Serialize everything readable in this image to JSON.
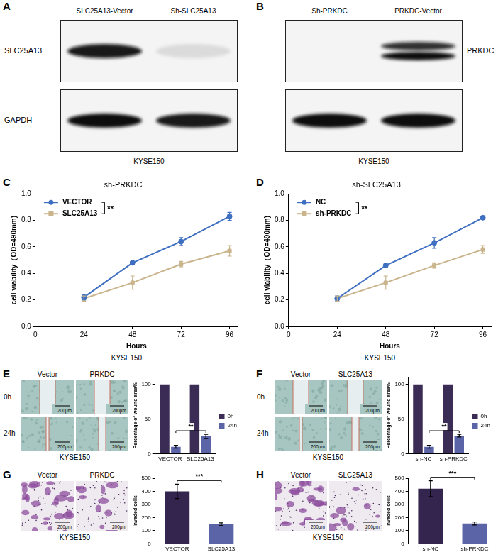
{
  "chart_data": [
    {
      "panel": "C",
      "type": "line",
      "title": "sh-PRKDC",
      "x_label": "Hours",
      "y_label": "cell viability（OD=490mm)",
      "x": [
        24,
        48,
        72,
        96
      ],
      "xlim": [
        0,
        100
      ],
      "xticks": [
        0,
        24,
        48,
        72,
        96
      ],
      "ylim": [
        0,
        1
      ],
      "yticks": [
        {
          "value": 0,
          "label": "0.0"
        },
        0.2,
        0.4,
        0.6,
        0.8,
        {
          "value": 1,
          "label": "1.0"
        }
      ],
      "series": [
        {
          "name": "VECTOR",
          "color": "#3f6fc0",
          "marker": "circle",
          "values": [
            0.22,
            0.48,
            0.64,
            0.83
          ],
          "errors": [
            0.02,
            0.01,
            0.03,
            0.03
          ]
        },
        {
          "name": "SLC25A13",
          "color": "#c9b48c",
          "marker": "square",
          "values": [
            0.21,
            0.33,
            0.47,
            0.57
          ],
          "errors": [
            0.02,
            0.05,
            0.02,
            0.04
          ]
        }
      ],
      "legend": "upper left",
      "annotation": "**",
      "grid": false,
      "caption": "KYSE150"
    },
    {
      "panel": "D",
      "type": "line",
      "title": "sh-SLC25A13",
      "x_label": "Hours",
      "y_label": "cell viability（OD=490mm)",
      "x": [
        24,
        48,
        72,
        96
      ],
      "xlim": [
        0,
        100
      ],
      "xticks": [
        0,
        24,
        48,
        72,
        96
      ],
      "ylim": [
        0,
        1
      ],
      "yticks": [
        {
          "value": 0,
          "label": "0.0"
        },
        0.2,
        0.4,
        0.6,
        0.8,
        {
          "value": 1,
          "label": "1.0"
        }
      ],
      "series": [
        {
          "name": "NC",
          "color": "#3f6fc0",
          "marker": "circle",
          "values": [
            0.21,
            0.46,
            0.63,
            0.82
          ],
          "errors": [
            0.02,
            0.01,
            0.04,
            0.01
          ]
        },
        {
          "name": "sh-PRKDC",
          "color": "#c9b48c",
          "marker": "square",
          "values": [
            0.21,
            0.33,
            0.46,
            0.58
          ],
          "errors": [
            0.02,
            0.05,
            0.02,
            0.03
          ]
        }
      ],
      "legend": "upper left",
      "annotation": "**",
      "grid": false,
      "caption": "KYSE150"
    },
    {
      "panel": "E",
      "type": "bar",
      "y_label": "Percentage of wound area%",
      "categories": [
        "VECTOR",
        "SLC25A13"
      ],
      "series": [
        {
          "name": "0h",
          "color": "#3a2c55",
          "values": [
            100,
            100
          ]
        },
        {
          "name": "24h",
          "color": "#5c64a8",
          "values": [
            10,
            25
          ],
          "errors": [
            2,
            3
          ]
        }
      ],
      "ylim": [
        0,
        110
      ],
      "yticks": [
        0,
        50,
        100
      ],
      "legend": "right",
      "annotation": "**",
      "grid": false
    },
    {
      "panel": "F",
      "type": "bar",
      "y_label": "Percentage of wound area%",
      "categories": [
        "sh-NC",
        "sh-PRKDC"
      ],
      "series": [
        {
          "name": "0h",
          "color": "#3a2c55",
          "values": [
            100,
            100
          ]
        },
        {
          "name": "24h",
          "color": "#5c64a8",
          "values": [
            10,
            26
          ],
          "errors": [
            2,
            2
          ]
        }
      ],
      "ylim": [
        0,
        110
      ],
      "yticks": [
        0,
        50,
        100
      ],
      "legend": "right",
      "annotation": "**",
      "grid": false
    },
    {
      "panel": "G",
      "type": "bar",
      "y_label": "Invaded cells",
      "categories": [
        "VECTOR",
        "SLC25A13"
      ],
      "values": [
        400,
        150
      ],
      "errors": [
        55,
        10
      ],
      "colors": [
        "#33254d",
        "#5c64a8"
      ],
      "ylim": [
        0,
        500
      ],
      "yticks": [
        0,
        100,
        200,
        300,
        400,
        500
      ],
      "annotation": "***",
      "grid": false
    },
    {
      "panel": "H",
      "type": "bar",
      "y_label": "Invaded cells",
      "categories": [
        "sh-NC",
        "sh-PRKDC"
      ],
      "values": [
        420,
        155
      ],
      "errors": [
        60,
        12
      ],
      "colors": [
        "#33254d",
        "#5c64a8"
      ],
      "ylim": [
        0,
        500
      ],
      "yticks": [
        0,
        100,
        200,
        300,
        400,
        500
      ],
      "annotation": "***",
      "grid": false
    }
  ],
  "figure": {
    "blots": [
      {
        "panel": "A",
        "lanes": [
          "SLC25A13-Vector",
          "Sh-SLC25A13"
        ],
        "rows": [
          {
            "label": "SLC25A13"
          },
          {
            "label": "GAPDH"
          }
        ],
        "caption": "KYSE150"
      },
      {
        "panel": "B",
        "lanes": [
          "Sh-PRKDC",
          "PRKDC-Vector"
        ],
        "rows": [
          {
            "label": "PRKDC"
          },
          {
            "label": null
          }
        ],
        "caption": "KYSE150"
      }
    ],
    "micrographs": [
      {
        "type": "wound",
        "columns": [
          "Vector",
          "PRKDC"
        ],
        "rows": [
          "0h",
          "24h"
        ],
        "scale_bar": "200μm",
        "caption": "KYSE150"
      },
      {
        "type": "wound",
        "columns": [
          "Vector",
          "SLC25A13"
        ],
        "rows": [
          "0h",
          "24h"
        ],
        "scale_bar": "200μm",
        "caption": "KYSE150"
      },
      {
        "type": "transwell",
        "columns": [
          "Vector",
          "PRKDC"
        ],
        "scale_bar": "200μm",
        "caption": "KYSE150"
      },
      {
        "type": "transwell",
        "columns": [
          "Vector",
          "SLC25A13"
        ],
        "scale_bar": "200μm",
        "caption": "KYSE150"
      }
    ]
  }
}
